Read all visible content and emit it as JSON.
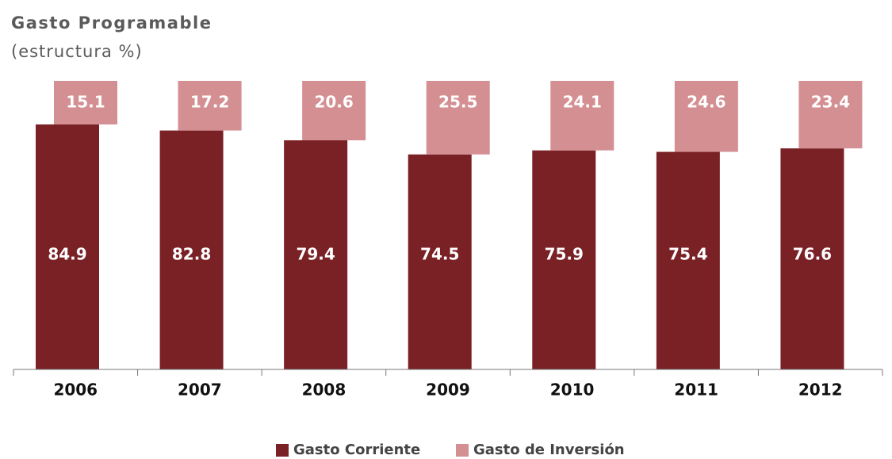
{
  "chart_data": {
    "type": "bar",
    "title": "Gasto Programable",
    "subtitle": "(estructura %)",
    "categories": [
      "2006",
      "2007",
      "2008",
      "2009",
      "2010",
      "2011",
      "2012"
    ],
    "series": [
      {
        "name": "Gasto Corriente",
        "color": "#7a2126",
        "values": [
          84.9,
          82.8,
          79.4,
          74.5,
          75.9,
          75.4,
          76.6
        ]
      },
      {
        "name": "Gasto de Inversión",
        "color": "#d48f92",
        "values": [
          15.1,
          17.2,
          20.6,
          25.5,
          24.1,
          24.6,
          23.4
        ]
      }
    ],
    "ylim": [
      0,
      100
    ],
    "stacked": true
  }
}
